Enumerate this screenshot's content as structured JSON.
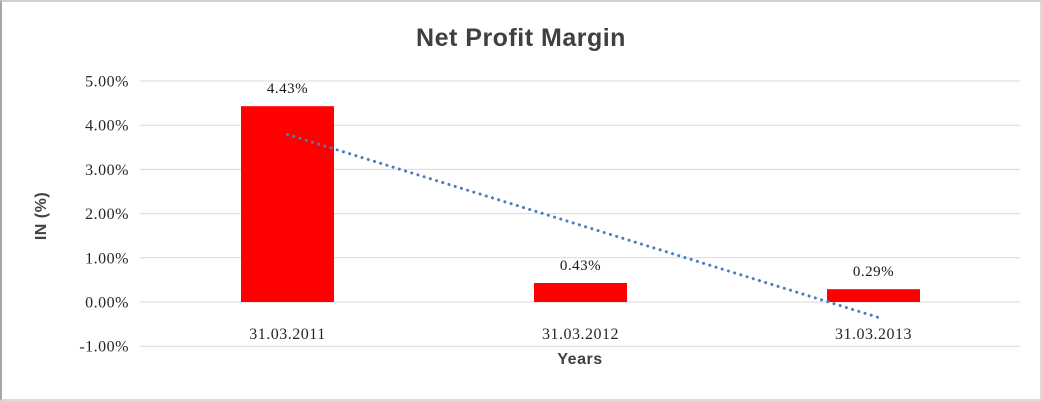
{
  "chart_data": {
    "type": "bar",
    "title": "Net Profit Margin",
    "xlabel": "Years",
    "ylabel": "IN (%)",
    "categories": [
      "31.03.2011",
      "31.03.2012",
      "31.03.2013"
    ],
    "values": [
      4.43,
      0.43,
      0.29
    ],
    "data_labels": [
      "4.43%",
      "0.43%",
      "0.29%"
    ],
    "ylim": [
      -1,
      5
    ],
    "ytick_step": 1,
    "ytick_labels": [
      "5.00%",
      "4.00%",
      "3.00%",
      "2.00%",
      "1.00%",
      "0.00%",
      "-1.00%"
    ],
    "grid": true,
    "legend": false,
    "bar_color": "#FF0000",
    "grid_color": "#D9D9D9",
    "trendline": {
      "type": "linear",
      "style": "dotted",
      "color": "#4A7EBB",
      "start_value": 3.79,
      "end_value": -0.35
    }
  }
}
